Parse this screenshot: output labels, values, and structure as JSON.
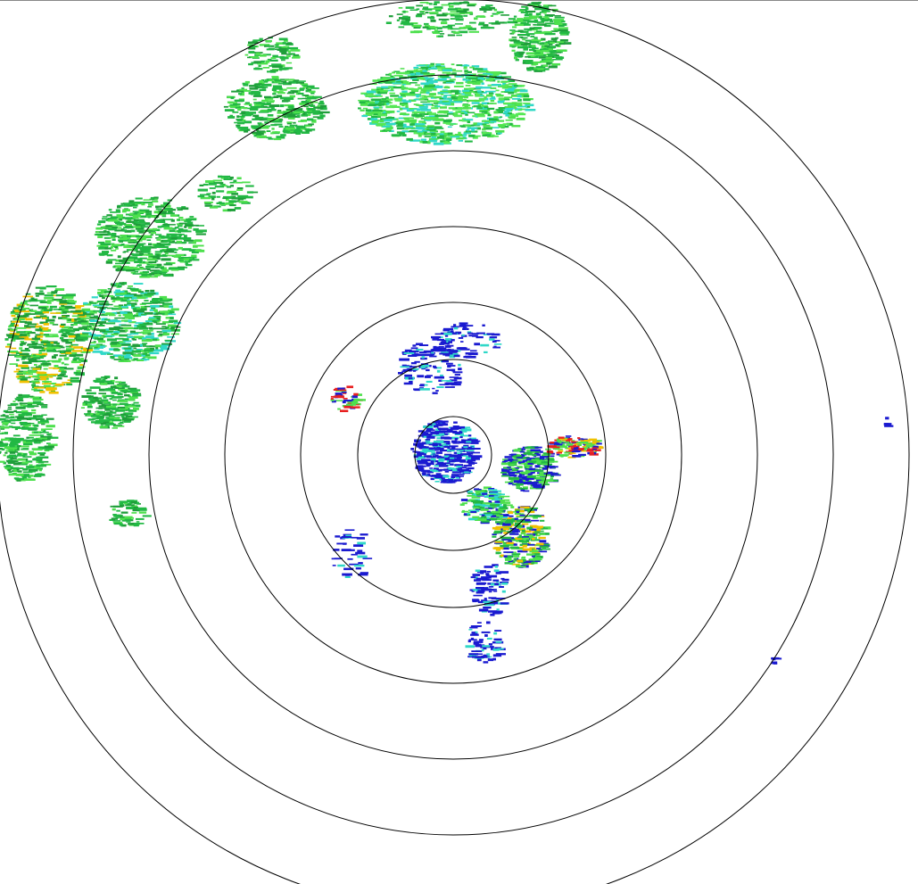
{
  "radar": {
    "range_ring_count": 7,
    "colors": {
      "ring": "#000000",
      "weak": "#1a1ad0",
      "light": "#22b844",
      "moderate": "#4de04d",
      "cyan": "#30d8c8",
      "heavy": "#f0c000",
      "intense": "#e82020",
      "background": "#ffffff"
    }
  }
}
